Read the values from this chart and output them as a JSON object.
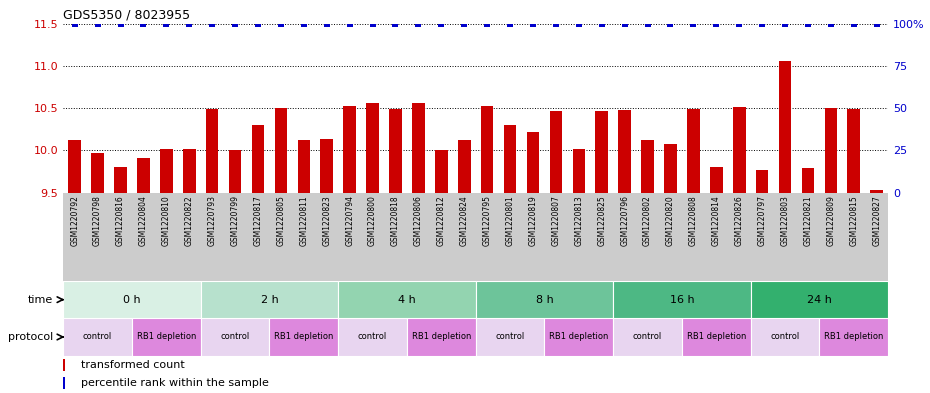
{
  "title": "GDS5350 / 8023955",
  "samples": [
    "GSM1220792",
    "GSM1220798",
    "GSM1220816",
    "GSM1220804",
    "GSM1220810",
    "GSM1220822",
    "GSM1220793",
    "GSM1220799",
    "GSM1220817",
    "GSM1220805",
    "GSM1220811",
    "GSM1220823",
    "GSM1220794",
    "GSM1220800",
    "GSM1220818",
    "GSM1220806",
    "GSM1220812",
    "GSM1220824",
    "GSM1220795",
    "GSM1220801",
    "GSM1220819",
    "GSM1220807",
    "GSM1220813",
    "GSM1220825",
    "GSM1220796",
    "GSM1220802",
    "GSM1220820",
    "GSM1220808",
    "GSM1220814",
    "GSM1220826",
    "GSM1220797",
    "GSM1220803",
    "GSM1220821",
    "GSM1220809",
    "GSM1220815",
    "GSM1220827"
  ],
  "red_values": [
    10.12,
    9.97,
    9.8,
    9.91,
    10.01,
    10.02,
    10.49,
    10.0,
    10.3,
    10.5,
    10.12,
    10.13,
    10.52,
    10.56,
    10.49,
    10.56,
    10.0,
    10.12,
    10.53,
    10.3,
    10.22,
    10.47,
    10.01,
    10.47,
    10.48,
    10.12,
    10.08,
    10.49,
    9.8,
    10.51,
    9.77,
    11.06,
    9.79,
    10.5,
    10.49,
    9.53
  ],
  "blue_values": [
    100,
    100,
    100,
    100,
    100,
    100,
    100,
    100,
    100,
    100,
    100,
    100,
    100,
    100,
    100,
    100,
    100,
    100,
    100,
    100,
    100,
    100,
    100,
    100,
    100,
    100,
    100,
    100,
    100,
    100,
    100,
    100,
    100,
    100,
    100,
    100
  ],
  "ylim_left": [
    9.5,
    11.5
  ],
  "ylim_right": [
    0,
    100
  ],
  "yticks_left": [
    9.5,
    10.0,
    10.5,
    11.0,
    11.5
  ],
  "yticks_right": [
    0,
    25,
    50,
    75,
    100
  ],
  "ytick_right_labels": [
    "0",
    "25",
    "50",
    "75",
    "100%"
  ],
  "time_groups": [
    {
      "label": "0 h",
      "start": 0,
      "end": 6,
      "color": "#d9f0e4"
    },
    {
      "label": "2 h",
      "start": 6,
      "end": 12,
      "color": "#b7e1cd"
    },
    {
      "label": "4 h",
      "start": 12,
      "end": 18,
      "color": "#93d4b0"
    },
    {
      "label": "8 h",
      "start": 18,
      "end": 24,
      "color": "#6dc49a"
    },
    {
      "label": "16 h",
      "start": 24,
      "end": 30,
      "color": "#4db884"
    },
    {
      "label": "24 h",
      "start": 30,
      "end": 36,
      "color": "#33b06e"
    }
  ],
  "protocol_groups": [
    {
      "label": "control",
      "start": 0,
      "end": 3,
      "color": "#e8d5f0"
    },
    {
      "label": "RB1 depletion",
      "start": 3,
      "end": 6,
      "color": "#dd88dd"
    },
    {
      "label": "control",
      "start": 6,
      "end": 9,
      "color": "#e8d5f0"
    },
    {
      "label": "RB1 depletion",
      "start": 9,
      "end": 12,
      "color": "#dd88dd"
    },
    {
      "label": "control",
      "start": 12,
      "end": 15,
      "color": "#e8d5f0"
    },
    {
      "label": "RB1 depletion",
      "start": 15,
      "end": 18,
      "color": "#dd88dd"
    },
    {
      "label": "control",
      "start": 18,
      "end": 21,
      "color": "#e8d5f0"
    },
    {
      "label": "RB1 depletion",
      "start": 21,
      "end": 24,
      "color": "#dd88dd"
    },
    {
      "label": "control",
      "start": 24,
      "end": 27,
      "color": "#e8d5f0"
    },
    {
      "label": "RB1 depletion",
      "start": 27,
      "end": 30,
      "color": "#dd88dd"
    },
    {
      "label": "control",
      "start": 30,
      "end": 33,
      "color": "#e8d5f0"
    },
    {
      "label": "RB1 depletion",
      "start": 33,
      "end": 36,
      "color": "#dd88dd"
    }
  ],
  "bar_color": "#cc0000",
  "dot_color": "#0000cc",
  "background_color": "#ffffff",
  "grid_color": "#000000",
  "sample_bg_color": "#cccccc",
  "legend_red": "transformed count",
  "legend_blue": "percentile rank within the sample",
  "fig_width": 9.3,
  "fig_height": 3.93,
  "dpi": 100
}
